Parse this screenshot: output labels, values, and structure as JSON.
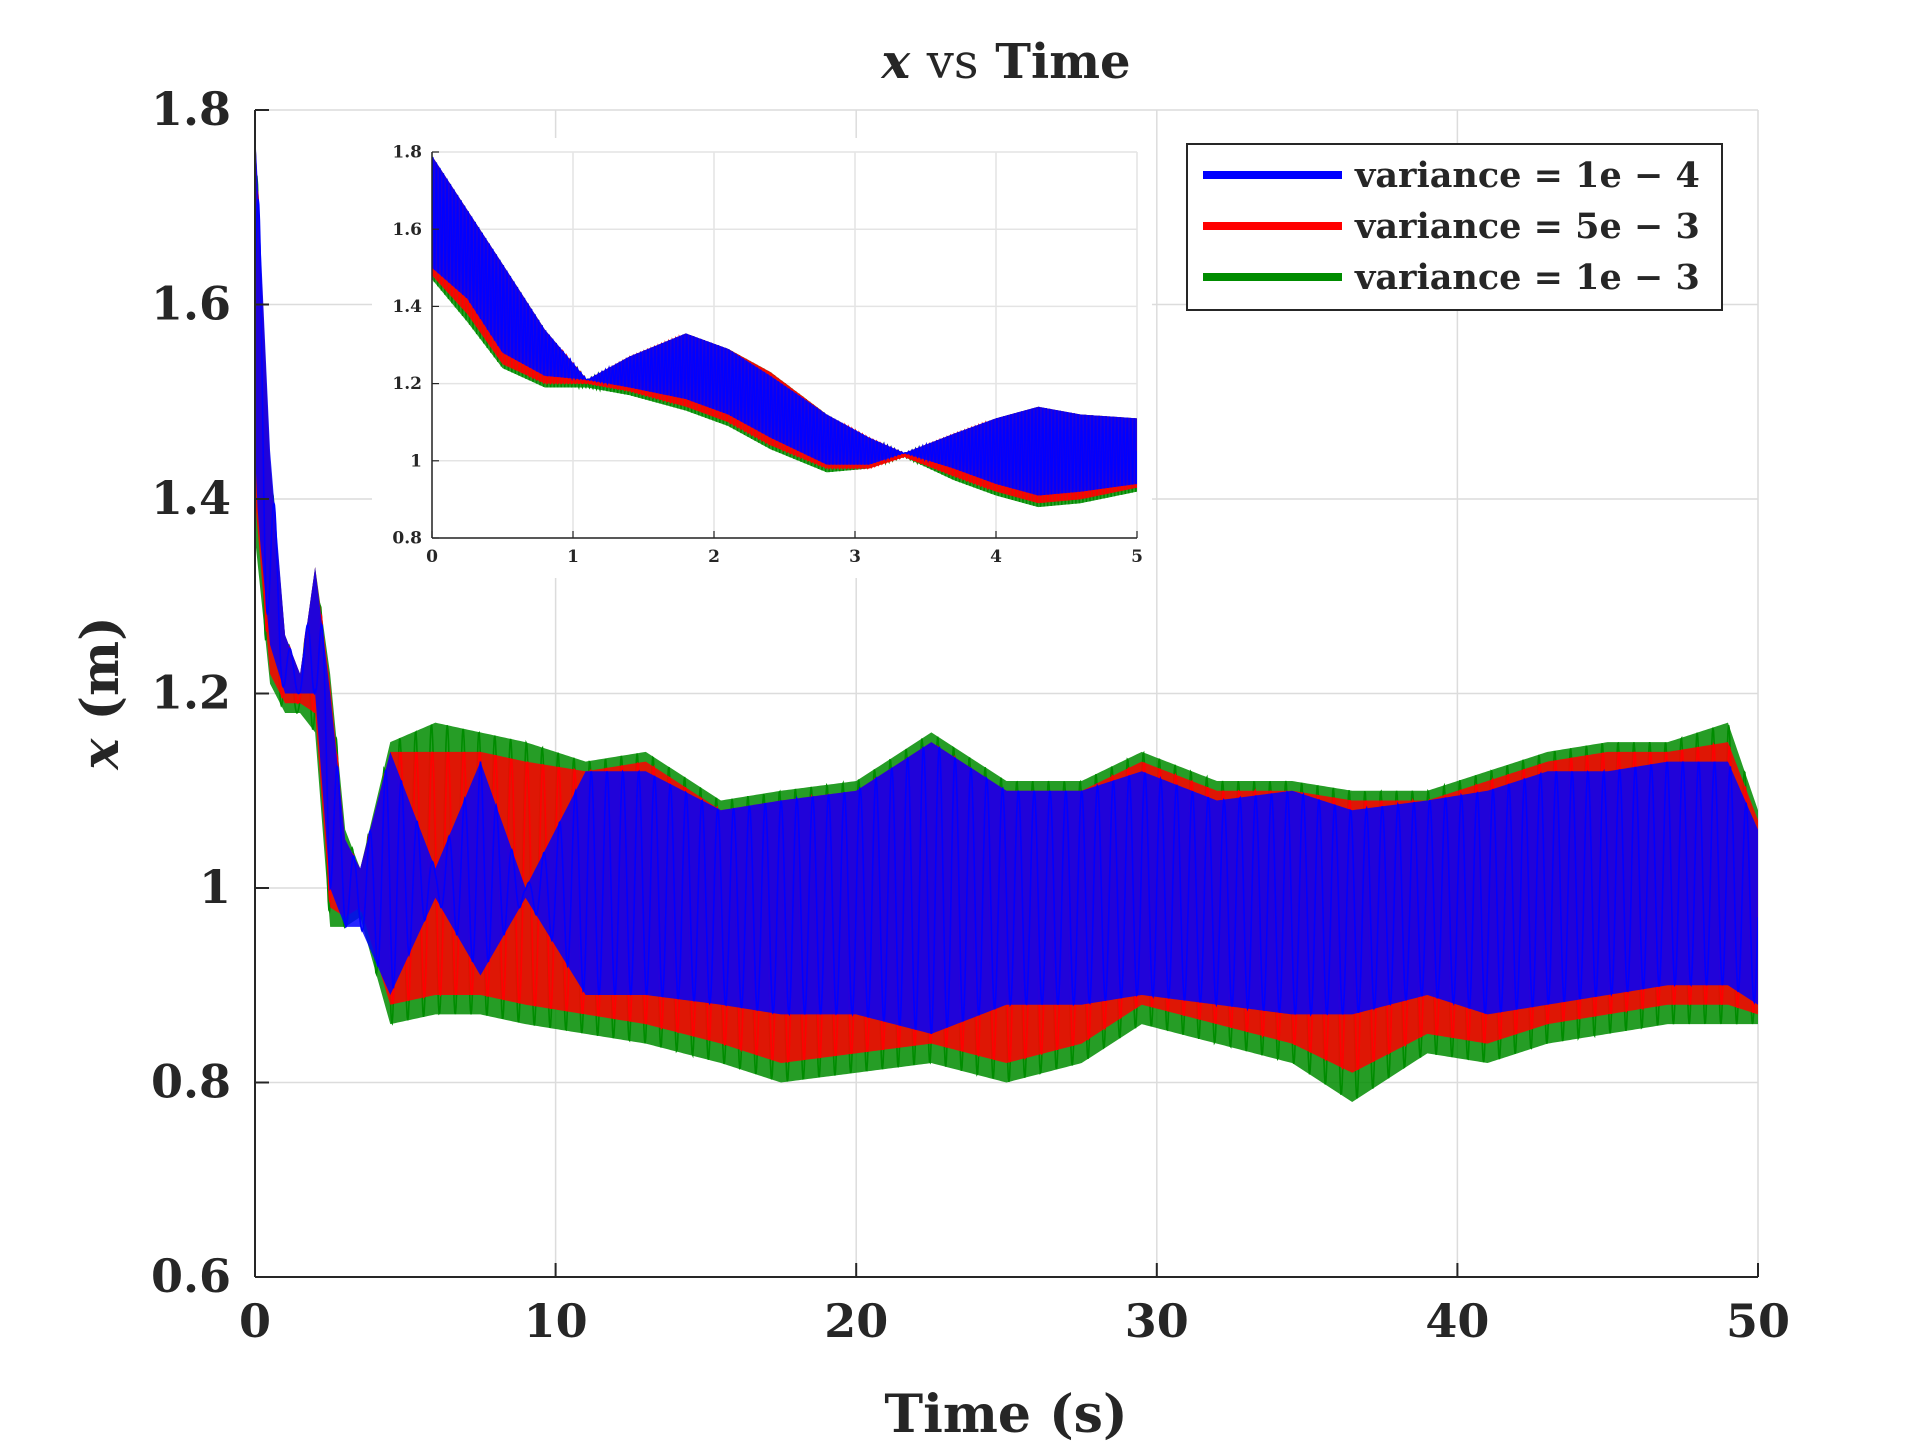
{
  "chart_data": [
    {
      "type": "line",
      "title": {
        "var": "x",
        "mid": "vs",
        "rest": "Time"
      },
      "xlabel": "Time (s)",
      "ylabel": {
        "var": "x",
        "unit": "(m)"
      },
      "xlim": [
        0,
        50
      ],
      "ylim": [
        0.6,
        1.8
      ],
      "xticks": [
        "0",
        "10",
        "20",
        "30",
        "40",
        "50"
      ],
      "yticks": [
        "0.6",
        "0.8",
        "1",
        "1.2",
        "1.4",
        "1.6",
        "1.8"
      ],
      "grid": true,
      "legend_position": "top-right",
      "series": [
        {
          "name": "variance = 1e − 4",
          "color": "#0000ff",
          "envelope": {
            "t": [
              0,
              0.1,
              0.5,
              1.0,
              1.5,
              2.0,
              2.5,
              3.0,
              3.5,
              4.5,
              6.0,
              7.5,
              9.0,
              11.0,
              13.0,
              15.5,
              17.5,
              20.0,
              22.5,
              25.0,
              27.5,
              29.5,
              32.0,
              34.5,
              36.5,
              39.0,
              41.0,
              43.0,
              45.0,
              47.0,
              49.0,
              50.0
            ],
            "upper": [
              1.78,
              1.72,
              1.45,
              1.26,
              1.22,
              1.33,
              1.2,
              1.05,
              1.02,
              1.14,
              1.02,
              1.13,
              1.0,
              1.12,
              1.12,
              1.08,
              1.09,
              1.1,
              1.15,
              1.1,
              1.1,
              1.12,
              1.09,
              1.1,
              1.08,
              1.09,
              1.1,
              1.12,
              1.12,
              1.13,
              1.13,
              1.06
            ],
            "lower": [
              1.45,
              1.38,
              1.25,
              1.2,
              1.2,
              1.2,
              1.0,
              0.96,
              0.96,
              0.89,
              0.99,
              0.91,
              0.99,
              0.89,
              0.89,
              0.88,
              0.87,
              0.87,
              0.85,
              0.88,
              0.88,
              0.89,
              0.88,
              0.87,
              0.87,
              0.89,
              0.87,
              0.88,
              0.89,
              0.9,
              0.9,
              0.88
            ]
          }
        },
        {
          "name": "variance = 5e − 3",
          "color": "#ff0000",
          "envelope": {
            "t": [
              0,
              0.5,
              1.0,
              1.5,
              2.0,
              2.5,
              3.0,
              3.5,
              4.5,
              6.0,
              7.5,
              9.0,
              11.0,
              13.0,
              15.5,
              17.5,
              20.0,
              22.5,
              25.0,
              27.5,
              29.5,
              32.0,
              34.5,
              36.5,
              39.0,
              41.0,
              43.0,
              45.0,
              47.0,
              49.0,
              50.0
            ],
            "upper": [
              1.78,
              1.44,
              1.26,
              1.22,
              1.33,
              1.21,
              1.05,
              1.02,
              1.14,
              1.14,
              1.14,
              1.13,
              1.12,
              1.13,
              1.08,
              1.09,
              1.1,
              1.15,
              1.1,
              1.1,
              1.13,
              1.1,
              1.1,
              1.09,
              1.09,
              1.11,
              1.13,
              1.14,
              1.14,
              1.15,
              1.07
            ],
            "lower": [
              1.4,
              1.22,
              1.19,
              1.19,
              1.18,
              0.98,
              0.97,
              0.98,
              0.88,
              0.89,
              0.89,
              0.88,
              0.87,
              0.86,
              0.84,
              0.82,
              0.83,
              0.84,
              0.82,
              0.84,
              0.88,
              0.86,
              0.84,
              0.81,
              0.85,
              0.84,
              0.86,
              0.87,
              0.88,
              0.88,
              0.87
            ]
          }
        },
        {
          "name": "variance = 1e − 3",
          "color": "#008c00",
          "envelope": {
            "t": [
              0,
              0.5,
              1.0,
              1.5,
              2.0,
              2.5,
              3.0,
              3.5,
              4.5,
              6.0,
              7.5,
              9.0,
              11.0,
              13.0,
              15.5,
              17.5,
              20.0,
              22.5,
              25.0,
              27.5,
              29.5,
              32.0,
              34.5,
              36.5,
              39.0,
              41.0,
              43.0,
              45.0,
              47.0,
              49.0,
              50.0
            ],
            "upper": [
              1.78,
              1.44,
              1.26,
              1.22,
              1.33,
              1.22,
              1.06,
              1.02,
              1.15,
              1.17,
              1.16,
              1.15,
              1.13,
              1.14,
              1.09,
              1.1,
              1.11,
              1.16,
              1.11,
              1.11,
              1.14,
              1.11,
              1.11,
              1.1,
              1.1,
              1.12,
              1.14,
              1.15,
              1.15,
              1.17,
              1.08
            ],
            "lower": [
              1.36,
              1.21,
              1.18,
              1.18,
              1.16,
              0.96,
              0.96,
              0.97,
              0.86,
              0.87,
              0.87,
              0.86,
              0.85,
              0.84,
              0.82,
              0.8,
              0.81,
              0.82,
              0.8,
              0.82,
              0.86,
              0.84,
              0.82,
              0.78,
              0.83,
              0.82,
              0.84,
              0.85,
              0.86,
              0.86,
              0.86
            ]
          }
        }
      ]
    },
    {
      "type": "line",
      "role": "inset",
      "title": "",
      "xlabel": "",
      "ylabel": "",
      "xlim": [
        0,
        5
      ],
      "ylim": [
        0.8,
        1.8
      ],
      "xticks": [
        "0",
        "1",
        "2",
        "3",
        "4",
        "5"
      ],
      "yticks": [
        "0.8",
        "1",
        "1.2",
        "1.4",
        "1.6",
        "1.8"
      ],
      "grid": true,
      "series": [
        {
          "name": "variance = 1e − 4",
          "color": "#0000ff",
          "envelope": {
            "t": [
              0,
              0.25,
              0.5,
              0.8,
              1.1,
              1.4,
              1.8,
              2.1,
              2.4,
              2.8,
              3.1,
              3.35,
              3.7,
              4.0,
              4.3,
              4.6,
              5.0
            ],
            "upper": [
              1.79,
              1.65,
              1.51,
              1.34,
              1.21,
              1.27,
              1.33,
              1.29,
              1.22,
              1.12,
              1.06,
              1.02,
              1.07,
              1.11,
              1.14,
              1.12,
              1.11
            ],
            "lower": [
              1.5,
              1.42,
              1.28,
              1.22,
              1.21,
              1.19,
              1.16,
              1.12,
              1.06,
              0.99,
              0.99,
              1.02,
              0.98,
              0.94,
              0.91,
              0.92,
              0.94
            ]
          }
        },
        {
          "name": "variance = 5e − 3",
          "color": "#ff0000",
          "envelope": {
            "t": [
              0,
              0.25,
              0.5,
              0.8,
              1.1,
              1.4,
              1.8,
              2.1,
              2.4,
              2.8,
              3.1,
              3.35,
              3.7,
              4.0,
              4.3,
              4.6,
              5.0
            ],
            "upper": [
              1.79,
              1.65,
              1.51,
              1.34,
              1.21,
              1.27,
              1.33,
              1.29,
              1.23,
              1.12,
              1.06,
              1.02,
              1.07,
              1.11,
              1.14,
              1.12,
              1.11
            ],
            "lower": [
              1.48,
              1.38,
              1.25,
              1.2,
              1.2,
              1.18,
              1.14,
              1.1,
              1.04,
              0.98,
              0.98,
              1.01,
              0.96,
              0.92,
              0.89,
              0.9,
              0.93
            ]
          }
        },
        {
          "name": "variance = 1e − 3",
          "color": "#008c00",
          "envelope": {
            "t": [
              0,
              0.25,
              0.5,
              0.8,
              1.1,
              1.4,
              1.8,
              2.1,
              2.4,
              2.8,
              3.1,
              3.35,
              3.7,
              4.0,
              4.3,
              4.6,
              5.0
            ],
            "upper": [
              1.79,
              1.65,
              1.51,
              1.34,
              1.21,
              1.27,
              1.33,
              1.29,
              1.23,
              1.12,
              1.06,
              1.02,
              1.07,
              1.11,
              1.14,
              1.12,
              1.11
            ],
            "lower": [
              1.47,
              1.36,
              1.24,
              1.19,
              1.19,
              1.17,
              1.13,
              1.09,
              1.03,
              0.97,
              0.98,
              1.01,
              0.95,
              0.91,
              0.88,
              0.89,
              0.92
            ]
          }
        }
      ]
    }
  ]
}
